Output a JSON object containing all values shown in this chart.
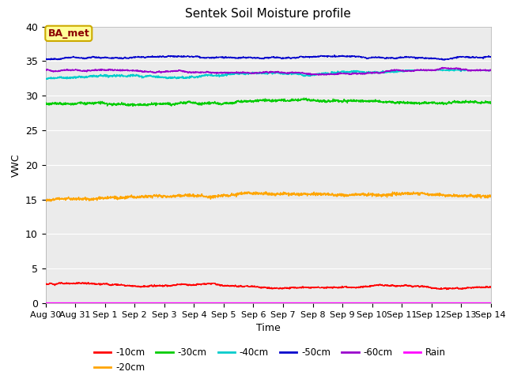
{
  "title": "Sentek Soil Moisture profile",
  "xlabel": "Time",
  "ylabel": "VWC",
  "annotation": "BA_met",
  "annotation_color": "#8B0000",
  "annotation_bg": "#FFFF99",
  "annotation_edge": "#CCAA00",
  "ylim": [
    0,
    40
  ],
  "yticks": [
    0,
    5,
    10,
    15,
    20,
    25,
    30,
    35,
    40
  ],
  "xtick_labels": [
    "Aug 30",
    "Aug 31",
    "Sep 1",
    "Sep 2",
    "Sep 3",
    "Sep 4",
    "Sep 5",
    "Sep 6",
    "Sep 7",
    "Sep 8",
    "Sep 9",
    "Sep 10",
    "Sep 11",
    "Sep 12",
    "Sep 13",
    "Sep 14"
  ],
  "background_color": "#EBEBEB",
  "grid_color": "#FFFFFF",
  "series_order": [
    "-10cm",
    "-20cm",
    "-30cm",
    "-40cm",
    "-50cm",
    "-60cm",
    "Rain"
  ],
  "series": {
    "-10cm": {
      "color": "#FF0000",
      "base": 2.8,
      "amplitude": 0.12,
      "trend": -0.005
    },
    "-20cm": {
      "color": "#FFA500",
      "base": 14.9,
      "amplitude": 0.25,
      "trend": -0.012
    },
    "-30cm": {
      "color": "#00CC00",
      "base": 28.8,
      "amplitude": 0.2,
      "trend": -0.02
    },
    "-40cm": {
      "color": "#00CCCC",
      "base": 32.5,
      "amplitude": 0.18,
      "trend": -0.018
    },
    "-50cm": {
      "color": "#0000CC",
      "base": 35.3,
      "amplitude": 0.1,
      "trend": -0.015
    },
    "-60cm": {
      "color": "#9900CC",
      "base": 33.7,
      "amplitude": 0.12,
      "trend": -0.015
    },
    "Rain": {
      "color": "#FF00FF",
      "base": 0.05,
      "amplitude": 0.0,
      "trend": 0.0
    }
  },
  "n_points": 2000,
  "legend_order": [
    "-10cm",
    "-20cm",
    "-30cm",
    "-40cm",
    "-50cm",
    "-60cm",
    "Rain"
  ]
}
